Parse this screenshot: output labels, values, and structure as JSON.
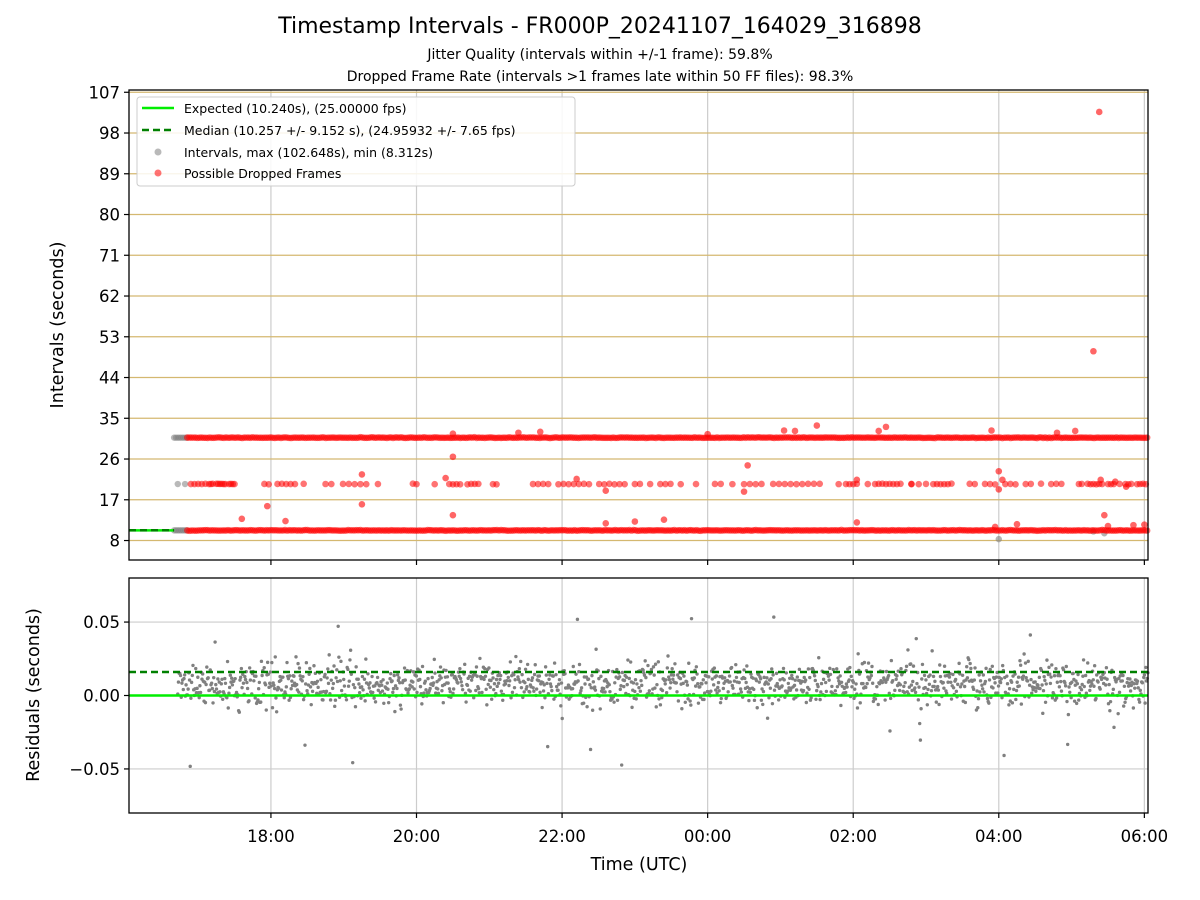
{
  "chart_data": {
    "title": "Timestamp Intervals - FR000P_20241107_164029_316898",
    "subtitle_1": "Jitter Quality (intervals within +/-1 frame): 59.8%",
    "subtitle_2": "Dropped Frame Rate (intervals >1 frames late within 50 FF files): 98.3%",
    "xlabel": "Time (UTC)",
    "x_ticks": [
      "18:00",
      "20:00",
      "22:00",
      "00:00",
      "02:00",
      "04:00",
      "06:00"
    ],
    "panels": [
      {
        "type": "scatter",
        "ylabel": "Intervals (seconds)",
        "y_ticks": [
          8,
          17,
          26,
          35,
          44,
          53,
          62,
          71,
          80,
          89,
          98,
          107
        ],
        "ylim": [
          3.7,
          107.5
        ],
        "grid": true,
        "legend_position": "top-left",
        "legend": [
          "Expected (10.240s), (25.00000 fps)",
          "Median (10.257 +/- 9.152 s), (24.95932 +/- 7.65 fps)",
          "Intervals, max (102.648s), min (8.312s)",
          "Possible Dropped Frames"
        ],
        "expected_interval": 10.24,
        "median_interval": 10.257,
        "bands": [
          10.24,
          20.48,
          30.72
        ],
        "colors": {
          "expected": "#00ee00",
          "median": "#008000",
          "intervals": "#808080",
          "dropped": "#ff0000",
          "hgrid": "#d4b870",
          "vgrid": "#cccccc"
        }
      },
      {
        "type": "scatter",
        "ylabel": "Residuals (seconds)",
        "y_ticks": [
          "0.05",
          "0.00",
          "−0.05"
        ],
        "ylim": [
          -0.08,
          0.08
        ],
        "grid": true,
        "expected_residual": 0.0,
        "median_residual": 0.016,
        "colors": {
          "expected": "#00ee00",
          "median": "#008000",
          "points": "#808080"
        }
      }
    ],
    "x_range_hours": [
      16.05,
      30.05
    ],
    "start_hour": 16.67,
    "dropped_start_hour": 16.85
  }
}
